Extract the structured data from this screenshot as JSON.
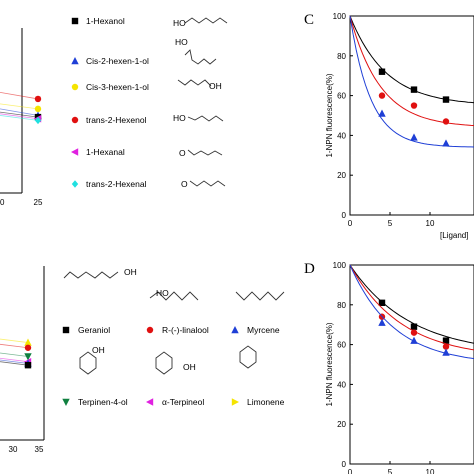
{
  "panels": [
    {
      "letter": "C"
    },
    {
      "letter": "D"
    }
  ],
  "chart_data": [
    {
      "type": "scatter",
      "partial": "top-left (cropped)",
      "xticks": [
        "0",
        "25"
      ],
      "xlim": [
        0,
        25
      ],
      "legend": [
        {
          "name": "1-Hexanol",
          "color": "#000000",
          "marker": "square"
        },
        {
          "name": "Cis-2-hexen-1-ol",
          "color": "#1f3fd6",
          "marker": "triangle"
        },
        {
          "name": "Cis-3-hexen-1-ol",
          "color": "#f5e400",
          "marker": "circle"
        },
        {
          "name": "trans-2-Hexenol",
          "color": "#e01010",
          "marker": "circle"
        },
        {
          "name": "1-Hexanal",
          "color": "#e020e0",
          "marker": "triangle-left"
        },
        {
          "name": "trans-2-Hexenal",
          "color": "#20e0e0",
          "marker": "diamond"
        }
      ],
      "series": [
        {
          "color": "#e01010",
          "marker": "circle",
          "points": [
            [
              0,
              61
            ],
            [
              24,
              57
            ]
          ]
        },
        {
          "color": "#f5e400",
          "marker": "circle",
          "points": [
            [
              0,
              54
            ],
            [
              24,
              51
            ]
          ]
        },
        {
          "color": "#1f3fd6",
          "marker": "triangle",
          "points": [
            [
              0,
              51
            ],
            [
              24,
              47
            ]
          ]
        },
        {
          "color": "#000000",
          "marker": "square",
          "points": [
            [
              0,
              49
            ],
            [
              24,
              46
            ]
          ]
        },
        {
          "color": "#e020e0",
          "marker": "triangle-left",
          "points": [
            [
              0,
              48
            ],
            [
              24,
              45
            ]
          ]
        },
        {
          "color": "#20e0e0",
          "marker": "diamond",
          "points": [
            [
              0,
              47
            ],
            [
              24,
              44
            ]
          ]
        }
      ]
    },
    {
      "type": "scatter",
      "panel": "C",
      "ylabel": "1-NPN fluorescence(%)",
      "xlabel": "[Ligand]",
      "ylim": [
        0,
        100
      ],
      "yticks": [
        "0",
        "20",
        "40",
        "60",
        "80",
        "100"
      ],
      "xticks": [
        "0",
        "5",
        "10"
      ],
      "series": [
        {
          "color": "#000000",
          "marker": "square",
          "x": [
            4,
            8,
            12
          ],
          "y": [
            72,
            63,
            58
          ]
        },
        {
          "color": "#e01010",
          "marker": "circle",
          "x": [
            4,
            8,
            12
          ],
          "y": [
            60,
            55,
            47
          ]
        },
        {
          "color": "#1f3fd6",
          "marker": "triangle",
          "x": [
            4,
            8,
            12
          ],
          "y": [
            51,
            39,
            36
          ]
        }
      ]
    },
    {
      "type": "scatter",
      "partial": "bottom-left (cropped)",
      "xticks": [
        "30",
        "35"
      ],
      "legend": [
        {
          "name": "Geraniol",
          "color": "#000000",
          "marker": "square"
        },
        {
          "name": "R-(-)-linalool",
          "color": "#e01010",
          "marker": "circle"
        },
        {
          "name": "Myrcene",
          "color": "#1f3fd6",
          "marker": "triangle"
        },
        {
          "name": "Terpinen-4-ol",
          "color": "#108040",
          "marker": "triangle-down"
        },
        {
          "name": "α-Terpineol",
          "color": "#e020e0",
          "marker": "triangle-left"
        },
        {
          "name": "Limonene",
          "color": "#f5e400",
          "marker": "triangle-right"
        }
      ],
      "series": [
        {
          "color": "#f5e400",
          "marker": "triangle",
          "points": [
            [
              0,
              58
            ],
            [
              32,
              56
            ]
          ]
        },
        {
          "color": "#e01010",
          "marker": "circle",
          "points": [
            [
              0,
              55
            ],
            [
              32,
              53
            ]
          ]
        },
        {
          "color": "#108040",
          "marker": "triangle-down",
          "points": [
            [
              0,
              50
            ],
            [
              32,
              48
            ]
          ]
        },
        {
          "color": "#e020e0",
          "marker": "triangle-left",
          "points": [
            [
              0,
              47
            ],
            [
              32,
              45
            ]
          ]
        },
        {
          "color": "#1f3fd6",
          "marker": "triangle",
          "points": [
            [
              0,
              46
            ],
            [
              32,
              44
            ]
          ]
        },
        {
          "color": "#000000",
          "marker": "square",
          "points": [
            [
              0,
              45
            ],
            [
              32,
              43
            ]
          ]
        }
      ]
    },
    {
      "type": "scatter",
      "panel": "D",
      "ylabel": "1-NPN fluorescence(%)",
      "xlabel": "[Ligand",
      "ylim": [
        0,
        100
      ],
      "yticks": [
        "0",
        "20",
        "40",
        "60",
        "80",
        "100"
      ],
      "xticks": [
        "0",
        "5",
        "10"
      ],
      "series": [
        {
          "color": "#000000",
          "marker": "square",
          "x": [
            4,
            8,
            12
          ],
          "y": [
            81,
            69,
            62
          ]
        },
        {
          "color": "#e01010",
          "marker": "circle",
          "x": [
            4,
            8,
            12
          ],
          "y": [
            74,
            66,
            59
          ]
        },
        {
          "color": "#1f3fd6",
          "marker": "triangle",
          "x": [
            4,
            8,
            12
          ],
          "y": [
            71,
            62,
            56
          ]
        }
      ]
    }
  ]
}
